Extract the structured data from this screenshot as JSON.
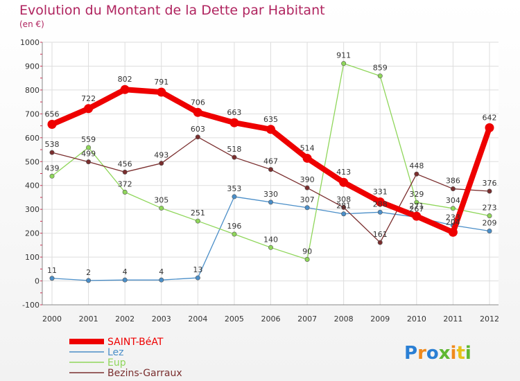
{
  "chart_data": {
    "type": "line",
    "title": "Evolution du Montant de la Dette par Habitant",
    "subtitle": "(en €)",
    "xlabel": "",
    "ylabel": "",
    "ylim": [
      -100,
      1000
    ],
    "yticks": [
      "-100",
      "0",
      "100",
      "200",
      "300",
      "400",
      "500",
      "600",
      "700",
      "800",
      "900",
      "1000"
    ],
    "x": [
      "2000",
      "2001",
      "2002",
      "2003",
      "2004",
      "2005",
      "2006",
      "2007",
      "2008",
      "2009",
      "2010",
      "2011",
      "2012"
    ],
    "grid": true,
    "legend_position": "bottom-left",
    "series": [
      {
        "name": "SAINT-BéAT",
        "color": "#ee0000",
        "values": [
          656,
          722,
          802,
          791,
          706,
          663,
          635,
          514,
          413,
          331,
          271,
          204,
          642
        ]
      },
      {
        "name": "Lez",
        "color": "#4a8ec8",
        "values": [
          11,
          2,
          4,
          4,
          13,
          353,
          330,
          307,
          281,
          288,
          267,
          233,
          209
        ]
      },
      {
        "name": "Eup",
        "color": "#8fd65a",
        "values": [
          439,
          559,
          372,
          305,
          251,
          196,
          140,
          90,
          911,
          859,
          329,
          304,
          273
        ]
      },
      {
        "name": "Bezins-Garraux",
        "color": "#7a2e2e",
        "values": [
          538,
          499,
          456,
          493,
          603,
          518,
          467,
          390,
          308,
          161,
          448,
          386,
          376
        ]
      }
    ]
  },
  "logo": {
    "text": "Proxiti"
  }
}
